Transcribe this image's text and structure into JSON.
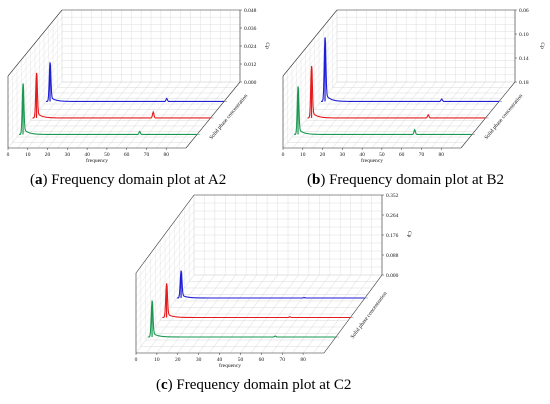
{
  "panels": [
    {
      "caption": {
        "tag": "a",
        "text": "Frequency domain plot at A2"
      },
      "chart_data": {
        "type": "line",
        "xlabel": "frequency",
        "ylabel": "Cp",
        "zlabel": "Solid phase concentration",
        "xlim": [
          0,
          90
        ],
        "xticks": [
          0,
          10,
          20,
          30,
          40,
          50,
          60,
          70,
          80
        ],
        "ylim": [
          0,
          0.048
        ],
        "yticks": [
          "0.000",
          "0.012",
          "0.024",
          "0.036",
          "0.048"
        ],
        "grid": true,
        "series": [
          {
            "color": "#1a9850",
            "peaks": [
              [
                2,
                0.034
              ],
              [
                61,
                0.002
              ]
            ]
          },
          {
            "color": "#e41a1c",
            "peaks": [
              [
                2,
                0.03
              ],
              [
                61,
                0.004
              ]
            ]
          },
          {
            "color": "#1f1fd6",
            "peaks": [
              [
                2,
                0.026
              ],
              [
                61,
                0.002
              ]
            ]
          }
        ]
      }
    },
    {
      "caption": {
        "tag": "b",
        "text": "Frequency domain plot at B2"
      },
      "chart_data": {
        "type": "line",
        "xlabel": "frequency",
        "ylabel": "Cp",
        "zlabel": "Solid phase concentration",
        "xlim": [
          0,
          90
        ],
        "xticks": [
          0,
          10,
          20,
          30,
          40,
          50,
          60,
          70,
          80
        ],
        "ylim": [
          0,
          0.18
        ],
        "yticks": [
          "0.18",
          "0.14",
          "0.10",
          "0.06"
        ],
        "grid": true,
        "series": [
          {
            "color": "#1a9850",
            "peaks": [
              [
                2,
                0.12
              ],
              [
                61,
                0.012
              ]
            ]
          },
          {
            "color": "#e41a1c",
            "peaks": [
              [
                2,
                0.13
              ],
              [
                61,
                0.008
              ]
            ]
          },
          {
            "color": "#1f1fd6",
            "peaks": [
              [
                2,
                0.16
              ],
              [
                61,
                0.006
              ]
            ]
          }
        ]
      }
    },
    {
      "caption": {
        "tag": "c",
        "text": "Frequency domain plot at C2"
      },
      "chart_data": {
        "type": "line",
        "xlabel": "frequency",
        "ylabel": "Cp",
        "zlabel": "Solid phase concentration",
        "xlim": [
          0,
          90
        ],
        "xticks": [
          0,
          10,
          20,
          30,
          40,
          50,
          60,
          70,
          80
        ],
        "ylim": [
          0,
          0.352
        ],
        "yticks": [
          "0.000",
          "0.088",
          "0.176",
          "0.264",
          "0.352"
        ],
        "grid": true,
        "series": [
          {
            "color": "#1a9850",
            "peaks": [
              [
                2,
                0.16
              ],
              [
                61,
                0.004
              ]
            ]
          },
          {
            "color": "#e41a1c",
            "peaks": [
              [
                2,
                0.15
              ],
              [
                61,
                0.003
              ]
            ]
          },
          {
            "color": "#1f1fd6",
            "peaks": [
              [
                2,
                0.12
              ],
              [
                61,
                0.002
              ]
            ]
          }
        ]
      }
    }
  ]
}
